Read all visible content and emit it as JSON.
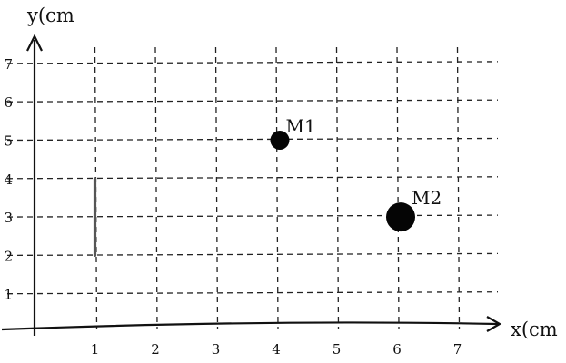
{
  "diagram": {
    "x_axis_label": "x(cm",
    "y_axis_label": "y(cm",
    "x_ticks": [
      {
        "value": 1,
        "label": "1"
      },
      {
        "value": 2,
        "label": "2"
      },
      {
        "value": 3,
        "label": "3"
      },
      {
        "value": 4,
        "label": "4"
      },
      {
        "value": 5,
        "label": "5"
      },
      {
        "value": 6,
        "label": "6"
      },
      {
        "value": 7,
        "label": "7"
      }
    ],
    "y_ticks": [
      {
        "value": 1,
        "label": "1"
      },
      {
        "value": 2,
        "label": "2"
      },
      {
        "value": 3,
        "label": "3"
      },
      {
        "value": 4,
        "label": "4"
      },
      {
        "value": 5,
        "label": "5"
      },
      {
        "value": 6,
        "label": "6"
      },
      {
        "value": 7,
        "label": "7"
      }
    ],
    "points": [
      {
        "name": "M1",
        "x": 4,
        "y": 5,
        "size": "small"
      },
      {
        "name": "M2",
        "x": 6,
        "y": 3,
        "size": "large"
      }
    ],
    "segment": {
      "x": 1,
      "y_from": 2,
      "y_to": 4
    }
  }
}
